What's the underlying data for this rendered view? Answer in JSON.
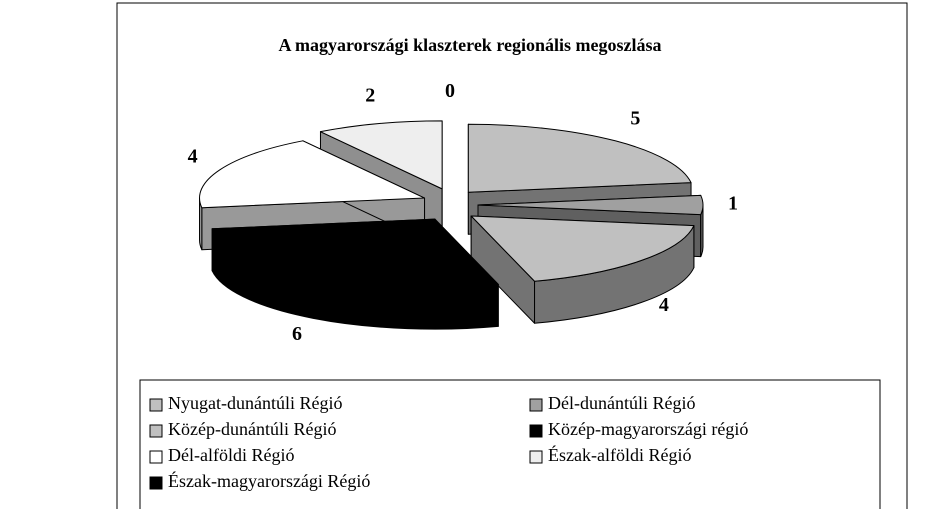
{
  "chart_data": {
    "type": "pie",
    "title": "A magyarországi klaszterek regionális megoszlása",
    "categories": [
      "Nyugat-dunántúli Régió",
      "Dél-dunántúli Régió",
      "Közép-dunántúli Régió",
      "Közép-magyarországi régió",
      "Dél-alföldi Régió",
      "Észak-alföldi Régió",
      "Észak-magyarországi Régió"
    ],
    "values": [
      5,
      1,
      4,
      6,
      4,
      2,
      0
    ],
    "colors": [
      "#c0c0c0",
      "#a0a0a0",
      "#c0c0c0",
      "#000000",
      "#ffffff",
      "#eeeeee",
      "#000000"
    ],
    "legend": "bottom"
  }
}
